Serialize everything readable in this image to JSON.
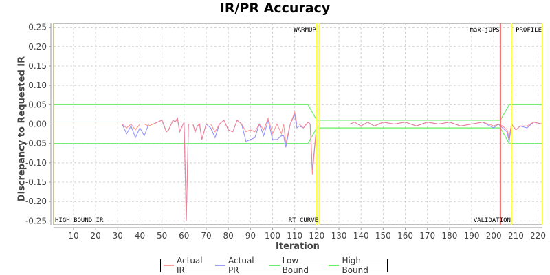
{
  "chart_data": {
    "type": "line",
    "title": "IR/PR Accuracy",
    "xlabel": "Iteration",
    "ylabel": "Discrepancy to Requested IR",
    "xlim": [
      1,
      222
    ],
    "ylim": [
      -0.26,
      0.26
    ],
    "x_ticks": [
      10,
      20,
      30,
      40,
      50,
      60,
      70,
      80,
      90,
      100,
      110,
      120,
      130,
      140,
      150,
      160,
      170,
      180,
      190,
      200,
      210,
      220
    ],
    "y_ticks": [
      "0.25",
      "0.20",
      "0.15",
      "0.10",
      "0.05",
      "0.00",
      "-0.05",
      "-0.10",
      "-0.15",
      "-0.20",
      "-0.25"
    ],
    "grid": true,
    "legend_position": "bottom",
    "series": [
      {
        "name": "Actual IR",
        "color": "#ff8080",
        "x": [
          1,
          32,
          34,
          36,
          38,
          40,
          42,
          44,
          46,
          48,
          50,
          52,
          53,
          55,
          56,
          57,
          58,
          60,
          61,
          62,
          64,
          65,
          66,
          67,
          68,
          70,
          72,
          74,
          76,
          78,
          80,
          82,
          84,
          86,
          88,
          90,
          92,
          94,
          96,
          98,
          100,
          102,
          104,
          105,
          106,
          108,
          110,
          111,
          112,
          114,
          116,
          117,
          118,
          120,
          135,
          137,
          140,
          143,
          146,
          150,
          155,
          160,
          165,
          170,
          175,
          180,
          185,
          190,
          195,
          200,
          202,
          204,
          206,
          207,
          208,
          210,
          212,
          215,
          218,
          222
        ],
        "y": [
          0,
          0,
          -0.01,
          0,
          -0.015,
          0,
          0,
          -0.005,
          0,
          0.005,
          0.01,
          -0.02,
          -0.015,
          0.01,
          0.005,
          0.015,
          -0.02,
          0.005,
          -0.25,
          0,
          0,
          -0.02,
          -0.005,
          0,
          -0.04,
          0,
          0,
          -0.02,
          0,
          0.01,
          -0.015,
          -0.02,
          0.01,
          0,
          -0.02,
          -0.015,
          -0.02,
          0,
          -0.015,
          0.015,
          -0.025,
          0,
          -0.025,
          0,
          -0.05,
          0,
          0.03,
          0,
          0,
          -0.01,
          0.005,
          0,
          -0.13,
          0,
          0,
          0.005,
          -0.005,
          0.005,
          -0.005,
          0.005,
          0,
          0.005,
          -0.005,
          0.005,
          0,
          0.005,
          -0.005,
          0,
          0.005,
          -0.005,
          0,
          -0.005,
          -0.015,
          -0.035,
          0,
          -0.015,
          -0.005,
          -0.005,
          0.005,
          0
        ]
      },
      {
        "name": "Actual PR",
        "color": "#8080ff",
        "x": [
          1,
          32,
          34,
          36,
          38,
          40,
          42,
          44,
          46,
          48,
          50,
          52,
          53,
          55,
          56,
          57,
          58,
          60,
          61,
          62,
          64,
          65,
          66,
          67,
          68,
          70,
          72,
          74,
          76,
          78,
          80,
          82,
          84,
          86,
          88,
          90,
          92,
          94,
          96,
          98,
          100,
          102,
          104,
          105,
          106,
          108,
          110,
          111,
          112,
          114,
          116,
          117,
          118,
          120,
          135,
          137,
          140,
          143,
          146,
          150,
          155,
          160,
          165,
          170,
          175,
          180,
          185,
          190,
          195,
          200,
          202,
          204,
          206,
          207,
          208,
          210,
          212,
          215,
          218,
          222
        ],
        "y": [
          0,
          0,
          -0.025,
          -0.005,
          -0.035,
          -0.01,
          -0.03,
          0,
          0,
          0.005,
          0.01,
          -0.02,
          -0.015,
          0.01,
          0.005,
          0.015,
          -0.02,
          0.005,
          -0.25,
          0,
          0,
          -0.02,
          -0.005,
          0,
          -0.04,
          0,
          -0.01,
          -0.035,
          0,
          0.01,
          -0.015,
          -0.02,
          0.01,
          0,
          -0.045,
          -0.04,
          -0.035,
          0,
          -0.03,
          0.01,
          -0.04,
          -0.04,
          -0.03,
          -0.03,
          -0.06,
          0,
          0.025,
          -0.01,
          -0.005,
          -0.01,
          0.005,
          0,
          -0.12,
          0,
          0,
          0.005,
          -0.005,
          0.005,
          -0.005,
          0.005,
          0,
          0.005,
          -0.005,
          0.005,
          0,
          0.005,
          -0.005,
          0,
          0.005,
          -0.01,
          0,
          -0.01,
          -0.02,
          -0.045,
          0,
          -0.015,
          -0.005,
          -0.01,
          0.005,
          0
        ]
      },
      {
        "name": "Low Bound",
        "color": "#66ee66",
        "x": [
          1,
          116,
          120,
          203,
          207,
          222
        ],
        "y": [
          -0.05,
          -0.05,
          -0.01,
          -0.01,
          -0.05,
          -0.05
        ]
      },
      {
        "name": "High Bound",
        "color": "#66ee66",
        "x": [
          1,
          116,
          120,
          203,
          207,
          222
        ],
        "y": [
          0.05,
          0.05,
          0.01,
          0.01,
          0.05,
          0.05
        ]
      }
    ],
    "markers": [
      {
        "label": "HIGH_BOUND_IR",
        "x": 1,
        "color": "#888833",
        "label_pos": "bottom-right"
      },
      {
        "label": "WARMUP",
        "x": 120,
        "color": "#ffff44",
        "label_pos": "top-left"
      },
      {
        "label": "RT_CURVE",
        "x": 121,
        "color": "#ffff44",
        "label_pos": "bottom-left"
      },
      {
        "label": "max-jOPS",
        "x": 203,
        "color": "#ee6666",
        "label_pos": "top-left"
      },
      {
        "label": "VALIDATION",
        "x": 208,
        "color": "#ffff44",
        "label_pos": "bottom-left"
      },
      {
        "label": "PROFILE",
        "x": 222,
        "color": "#ffff44",
        "label_pos": "top-left"
      }
    ]
  },
  "legend": {
    "items": [
      {
        "label": "Actual IR",
        "color": "#ff9999"
      },
      {
        "label": "Actual PR",
        "color": "#9999ff"
      },
      {
        "label": "Low Bound",
        "color": "#66ee66"
      },
      {
        "label": "High Bound",
        "color": "#66ee66"
      }
    ]
  }
}
